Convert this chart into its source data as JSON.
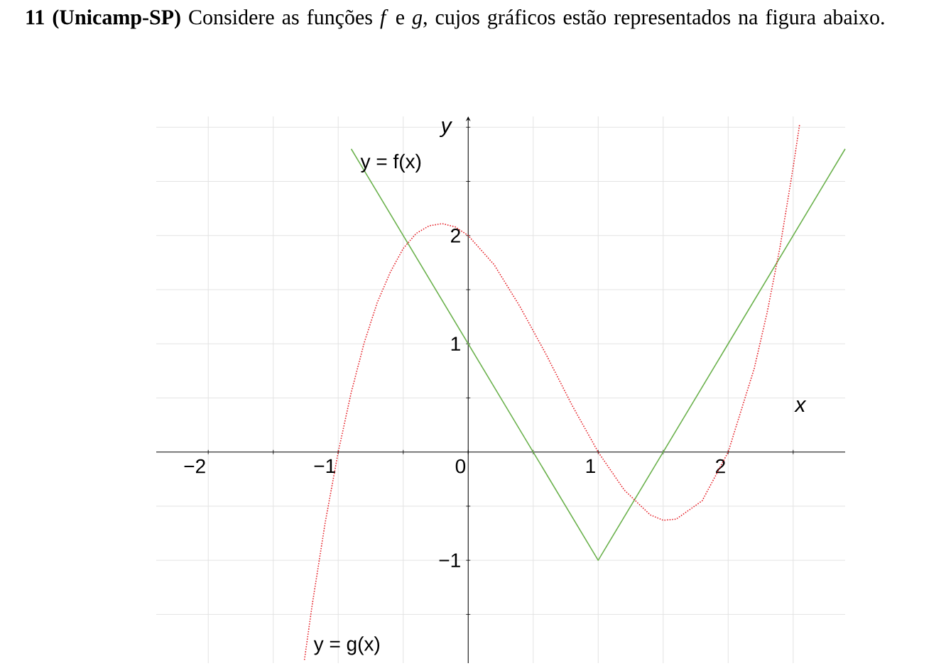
{
  "chart_data": {
    "type": "line",
    "title": "**11**  **(Unicamp-SP)** Considere as funções *f* e *g*, cujos gráficos estão representados na figura abaixo.",
    "xlabel": "x",
    "ylabel": "y",
    "xlim": [
      -2.4,
      2.9
    ],
    "ylim": [
      -1.95,
      3.1
    ],
    "xticks": [
      {
        "value": -2,
        "label": "−2"
      },
      {
        "value": -1.5,
        "label": null
      },
      {
        "value": -1,
        "label": "−1"
      },
      {
        "value": -0.5,
        "label": null
      },
      {
        "value": 0,
        "label": "0"
      },
      {
        "value": 0.5,
        "label": null
      },
      {
        "value": 1,
        "label": "1"
      },
      {
        "value": 1.5,
        "label": null
      },
      {
        "value": 2,
        "label": "2"
      },
      {
        "value": 2.5,
        "label": null
      }
    ],
    "yticks": [
      {
        "value": -1.5,
        "label": null
      },
      {
        "value": -1,
        "label": "−1"
      },
      {
        "value": -0.5,
        "label": null
      },
      {
        "value": 0.5,
        "label": null
      },
      {
        "value": 1,
        "label": "1"
      },
      {
        "value": 1.5,
        "label": null
      },
      {
        "value": 2,
        "label": "2"
      },
      {
        "value": 2.5,
        "label": null
      },
      {
        "value": 3,
        "label": null
      }
    ],
    "grid": true,
    "marker": "none",
    "series": [
      {
        "name": "y = f(x)",
        "color": "#6cb24e",
        "line_style": "solid",
        "x": [
          -0.9,
          1,
          2.9
        ],
        "values": [
          2.8,
          -1,
          2.8
        ]
      },
      {
        "name": "y = g(x)",
        "color": "#e52229",
        "line_style": "dotted",
        "x": [
          -1.26,
          -1.2,
          -1.1,
          -1,
          -0.9,
          -0.8,
          -0.7,
          -0.6,
          -0.5,
          -0.4,
          -0.3,
          -0.2,
          -0.1,
          0,
          0.2,
          0.4,
          0.6,
          0.8,
          1,
          1.2,
          1.4,
          1.5,
          1.6,
          1.8,
          2,
          2.2,
          2.3,
          2.4,
          2.5,
          2.55
        ],
        "values": [
          -1.92,
          -1.41,
          -0.65,
          0,
          0.55,
          1.01,
          1.38,
          1.66,
          1.88,
          2.02,
          2.09,
          2.11,
          2.08,
          2,
          1.73,
          1.34,
          0.9,
          0.43,
          0,
          -0.35,
          -0.58,
          -0.63,
          -0.62,
          -0.45,
          0,
          0.77,
          1.29,
          1.9,
          2.63,
          3.03
        ]
      }
    ]
  }
}
